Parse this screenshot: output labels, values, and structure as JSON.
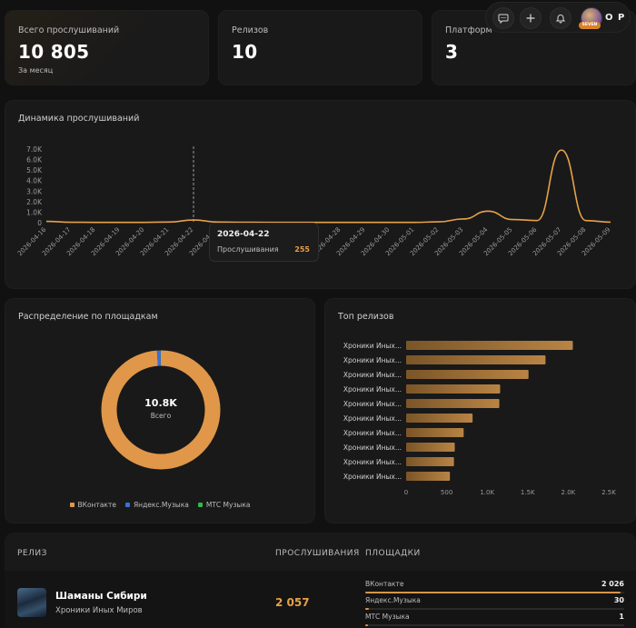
{
  "stats": [
    {
      "label": "Всего прослушиваний",
      "value": "10 805",
      "sub": "За месяц"
    },
    {
      "label": "Релизов",
      "value": "10",
      "sub": ""
    },
    {
      "label": "Платформ",
      "value": "3",
      "sub": ""
    }
  ],
  "topbar": {
    "chat_icon": "chat-bubble-icon",
    "add_icon": "plus-icon",
    "bell_icon": "bell-icon",
    "avatar_tag": "SEVEN",
    "user_initials": "O P"
  },
  "timeline": {
    "title": "Динамика прослушиваний",
    "tooltip": {
      "date": "2026-04-22",
      "label": "Прослушивания",
      "value": "255"
    }
  },
  "distribution": {
    "title": "Распределение по площадкам",
    "center_value": "10.8K",
    "center_label": "Всего"
  },
  "top_releases": {
    "title": "Топ релизов"
  },
  "table": {
    "headers": {
      "release": "РЕЛИЗ",
      "plays": "ПРОСЛУШИВАНИЯ",
      "platforms": "ПЛОЩАДКИ"
    },
    "rows": [
      {
        "title": "Шаманы Сибири",
        "artist": "Хроники Иных Миров",
        "plays": "2 057",
        "platforms": [
          {
            "name": "ВКонтакте",
            "value": "2 026",
            "fraction": 0.985
          },
          {
            "name": "Яндекс.Музыка",
            "value": "30",
            "fraction": 0.015
          },
          {
            "name": "МТС Музыка",
            "value": "1",
            "fraction": 0.005
          }
        ]
      }
    ]
  },
  "colors": {
    "accent": "#e6a14a",
    "vk": "#e0974a",
    "yandex": "#3b6fd8",
    "mts": "#33b84a"
  },
  "chart_data": [
    {
      "type": "line",
      "title": "Динамика прослушиваний",
      "x": [
        "2026-04-16",
        "2026-04-17",
        "2026-04-18",
        "2026-04-19",
        "2026-04-20",
        "2026-04-21",
        "2026-04-22",
        "2026-04-23",
        "2026-04-24",
        "2026-04-25",
        "2026-04-26",
        "2026-04-27",
        "2026-04-28",
        "2026-04-29",
        "2026-04-30",
        "2026-05-01",
        "2026-05-02",
        "2026-05-03",
        "2026-05-04",
        "2026-05-05",
        "2026-05-06",
        "2026-05-07",
        "2026-05-08",
        "2026-05-09"
      ],
      "series": [
        {
          "values": [
            120,
            40,
            30,
            30,
            30,
            60,
            255,
            60,
            40,
            30,
            30,
            30,
            30,
            30,
            30,
            30,
            80,
            350,
            1100,
            300,
            200,
            6900,
            200,
            50
          ]
        }
      ],
      "yticks": [
        "0",
        "1.0K",
        "2.0K",
        "3.0K",
        "4.0K",
        "5.0K",
        "6.0K",
        "7.0K"
      ],
      "ylim": [
        0,
        7000
      ],
      "grid": false
    },
    {
      "type": "pie",
      "title": "Распределение по площадкам",
      "labels": [
        "ВКонтакте",
        "Яндекс.Музыка",
        "МТС Музыка"
      ],
      "values": [
        10680,
        110,
        15
      ],
      "legend": "bottom"
    },
    {
      "type": "bar",
      "title": "Топ релизов",
      "categories": [
        "Хроники Иных...",
        "Хроники Иных...",
        "Хроники Иных...",
        "Хроники Иных...",
        "Хроники Иных...",
        "Хроники Иных...",
        "Хроники Иных...",
        "Хроники Иных...",
        "Хроники Иных...",
        "Хроники Иных..."
      ],
      "values": [
        2057,
        1720,
        1510,
        1160,
        1150,
        820,
        710,
        600,
        590,
        540
      ],
      "xticks": [
        "0",
        "500",
        "1.0K",
        "1.5K",
        "2.0K",
        "2.5K"
      ],
      "xlim": [
        0,
        2500
      ]
    }
  ]
}
